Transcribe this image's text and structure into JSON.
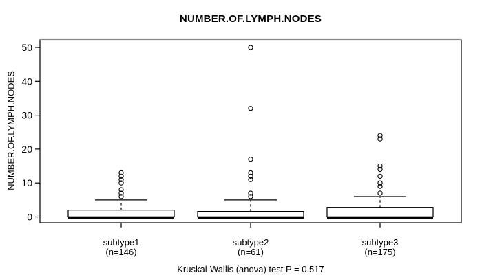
{
  "chart_data": {
    "type": "boxplot",
    "title": "NUMBER.OF.LYMPH.NODES",
    "ylabel": "NUMBER.OF.LYMPH.NODES",
    "xlabel": "",
    "footer": "Kruskal-Wallis (anova) test P = 0.517",
    "ylim": [
      0,
      50
    ],
    "yticks": [
      0,
      10,
      20,
      30,
      40,
      50
    ],
    "grid": false,
    "legend": "none",
    "groups": [
      {
        "label": "subtype1",
        "n_label": "(n=146)",
        "q1": 0,
        "median": 0,
        "q3": 2,
        "whisker_low": 0,
        "whisker_high": 5,
        "outliers": [
          6,
          7,
          8,
          10,
          11,
          12,
          13
        ]
      },
      {
        "label": "subtype2",
        "n_label": "(n=61)",
        "q1": 0,
        "median": 0,
        "q3": 1.6,
        "whisker_low": 0,
        "whisker_high": 5,
        "outliers": [
          6,
          7,
          11,
          12,
          13,
          17,
          32,
          50
        ]
      },
      {
        "label": "subtype3",
        "n_label": "(n=175)",
        "q1": 0,
        "median": 0,
        "q3": 2.8,
        "whisker_low": 0,
        "whisker_high": 6,
        "outliers": [
          7,
          9,
          10,
          12,
          14,
          15,
          23,
          24
        ]
      }
    ]
  },
  "colors": {
    "stroke": "#000000",
    "box_fill": "#ffffff",
    "frame_top": "#8a8a8a",
    "background": "#ffffff"
  }
}
